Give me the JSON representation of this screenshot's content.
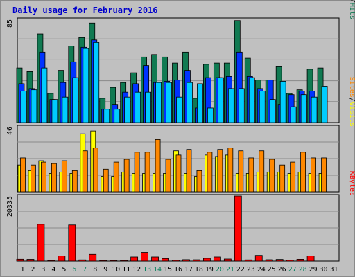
{
  "chart_data": {
    "type": "bar",
    "title": "Daily usage for February 2016",
    "colors": {
      "hits": "#117a52",
      "files": "#0033ff",
      "pages": "#00ccff",
      "visits": "#ffff00",
      "sites": "#ff8800",
      "kbytes": "#ff0000",
      "weekend_label": "#007f5a",
      "title": "#0000cc",
      "background": "#c0c0c0"
    },
    "categories": [
      "1",
      "2",
      "3",
      "4",
      "5",
      "6",
      "7",
      "8",
      "9",
      "10",
      "11",
      "12",
      "13",
      "14",
      "15",
      "16",
      "17",
      "18",
      "19",
      "20",
      "21",
      "22",
      "23",
      "24",
      "25",
      "26",
      "27",
      "28",
      "29",
      "30",
      "31"
    ],
    "weekend_days": [
      "6",
      "7",
      "13",
      "14",
      "20",
      "21",
      "27",
      "28"
    ],
    "panels": [
      {
        "id": "top",
        "scale_label": "85",
        "ymax": 85,
        "labels": [
          {
            "text": "Pages",
            "color": "#00ccff"
          },
          {
            "text": "/",
            "color": "#000000"
          },
          {
            "text": "Files",
            "color": "#0033ff"
          },
          {
            "text": "/",
            "color": "#000000"
          },
          {
            "text": "Hits",
            "color": "#117a52"
          }
        ],
        "series": [
          {
            "name": "Hits",
            "values": [
              45,
              42,
              73,
              24,
              43,
              63,
              70,
              82,
              20,
              29,
              33,
              41,
              54,
              56,
              54,
              49,
              58,
              20,
              48,
              49,
              49,
              84,
              53,
              35,
              35,
              46,
              24,
              27,
              44,
              45,
              0
            ]
          },
          {
            "name": "Files",
            "values": [
              32,
              28,
              58,
              19,
              33,
              50,
              62,
              68,
              11,
              15,
              25,
              32,
              47,
              33,
              34,
              35,
              43,
              12,
              37,
              37,
              38,
              58,
              38,
              28,
              35,
              15,
              23,
              26,
              26,
              0,
              0
            ]
          },
          {
            "name": "Pages",
            "values": [
              26,
              27,
              45,
              19,
              21,
              37,
              61,
              66,
              11,
              11,
              21,
              25,
              25,
              33,
              33,
              21,
              33,
              32,
              12,
              37,
              28,
              28,
              37,
              26,
              19,
              34,
              13,
              23,
              21,
              30,
              0
            ]
          }
        ]
      },
      {
        "id": "middle",
        "scale_label": "46",
        "ymax": 46,
        "labels": [
          {
            "text": "Sites",
            "color": "#ff8800"
          },
          {
            "text": "/",
            "color": "#000000"
          },
          {
            "text": "Visits",
            "color": "#ffff00"
          }
        ],
        "series": [
          {
            "name": "Visits",
            "values": [
              19,
              15,
              22,
              13,
              14,
              13,
              41,
              43,
              11,
              11,
              14,
              13,
              13,
              13,
              13,
              29,
              13,
              11,
              26,
              25,
              26,
              13,
              13,
              14,
              14,
              14,
              13,
              14,
              13,
              13,
              0
            ]
          },
          {
            "name": "Sites",
            "values": [
              24,
              19,
              21,
              20,
              22,
              15,
              29,
              31,
              16,
              21,
              23,
              28,
              28,
              37,
              23,
              26,
              30,
              15,
              28,
              30,
              31,
              29,
              24,
              29,
              23,
              19,
              21,
              28,
              24,
              24,
              0
            ]
          }
        ]
      },
      {
        "id": "bottom",
        "scale_label": "20335",
        "ymax": 20335,
        "labels": [
          {
            "text": "KBytes",
            "color": "#ff0000"
          }
        ],
        "series": [
          {
            "name": "KBytes",
            "values": [
              580,
              540,
              11500,
              150,
              1600,
              11300,
              380,
              2100,
              200,
              180,
              140,
              1300,
              2700,
              1300,
              800,
              270,
              450,
              420,
              870,
              1300,
              650,
              20335,
              380,
              1800,
              430,
              510,
              330,
              560,
              1600,
              0,
              0
            ]
          }
        ]
      }
    ]
  }
}
